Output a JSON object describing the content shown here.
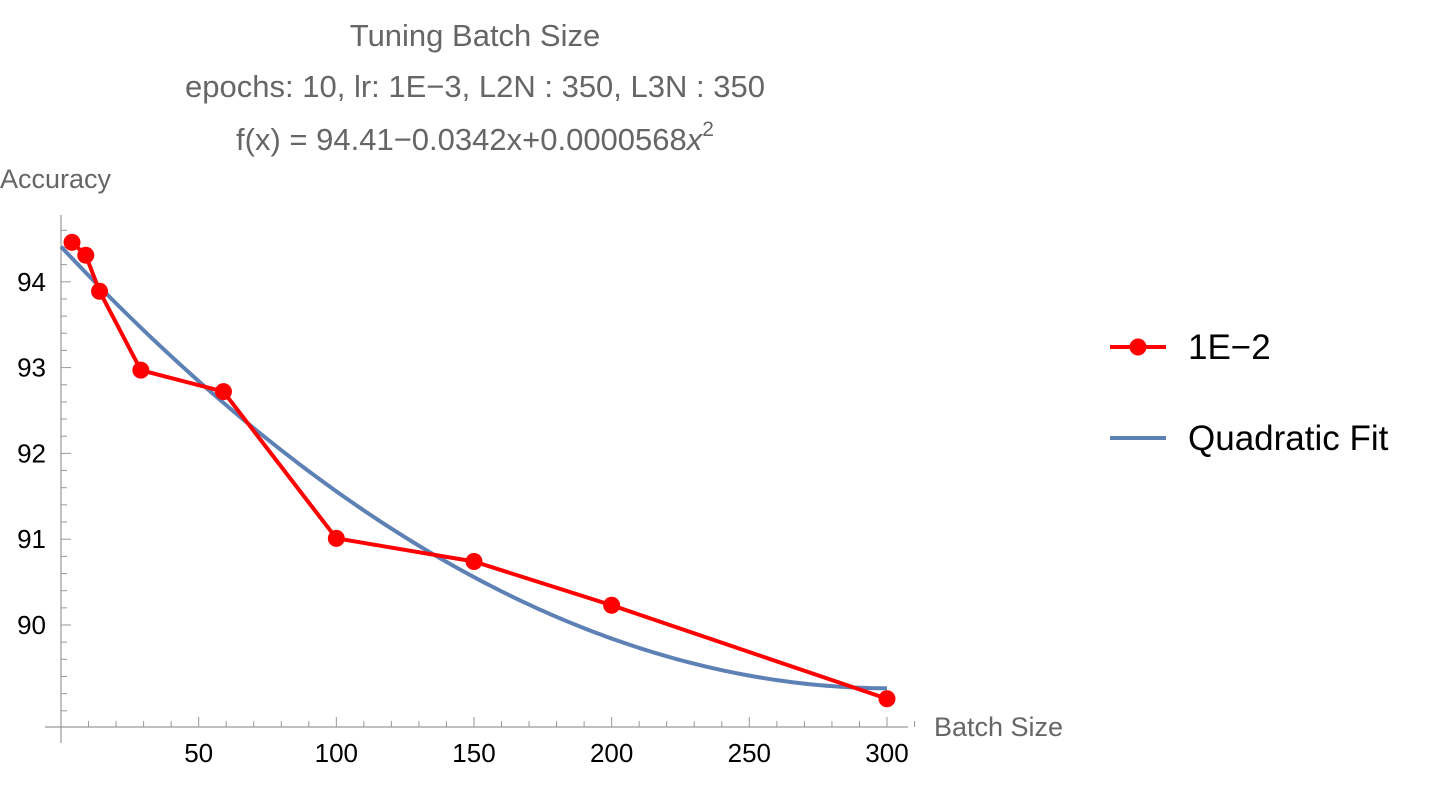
{
  "chart_data": {
    "type": "line",
    "title": "Tuning Batch Size",
    "subtitle": "epochs: 10, lr: 1E−3, L2N : 350, L3N : 350",
    "formula": {
      "prefix": "f(x) = 94.41−0.0342x+0.0000568",
      "variable": "x",
      "exponent": "2"
    },
    "xlabel": "Batch Size",
    "ylabel": "Accuracy",
    "xlim": [
      0,
      310
    ],
    "ylim": [
      88.9,
      94.8
    ],
    "x_ticks": [
      50,
      100,
      150,
      200,
      250,
      300
    ],
    "y_ticks": [
      90,
      91,
      92,
      93,
      94
    ],
    "x_minor_step": 10,
    "y_minor_step": 0.2,
    "grid": false,
    "legend_position": "right",
    "series": [
      {
        "name": "1E−2",
        "type": "line-markers",
        "color": "#ff0000",
        "x": [
          4,
          9,
          14,
          29,
          59,
          100,
          150,
          200,
          300
        ],
        "y": [
          94.46,
          94.31,
          93.89,
          92.97,
          92.72,
          91.01,
          90.74,
          90.23,
          89.14
        ]
      },
      {
        "name": "Quadratic Fit",
        "type": "function",
        "color": "#5e81b5",
        "coefficients": [
          94.41,
          -0.0342,
          5.68e-05
        ],
        "domain": [
          0,
          300
        ]
      }
    ]
  }
}
